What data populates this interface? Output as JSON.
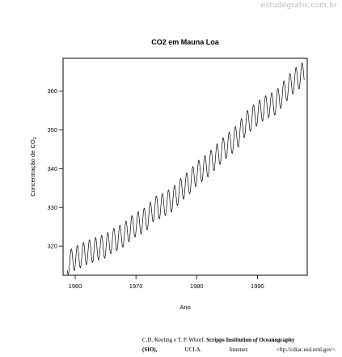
{
  "watermark": "estudegratis.com.br",
  "chart_data": {
    "type": "line",
    "title": "CO2 em Mauna Loa",
    "xlabel": "Ano",
    "ylabel_prefix": "Concentração de CO",
    "ylabel_subscript": "2",
    "xlim": [
      1958,
      1998.2
    ],
    "ylim": [
      312.5,
      368.5
    ],
    "xticks": [
      "1960",
      "1970",
      "1980",
      "1990"
    ],
    "yticks": [
      "320",
      "330",
      "340",
      "350",
      "360"
    ],
    "grid": false,
    "series": [
      {
        "x": [
          1959,
          1960,
          1961,
          1962,
          1963,
          1964,
          1965,
          1966,
          1967,
          1968,
          1969,
          1970,
          1971,
          1972,
          1973,
          1974,
          1975,
          1976,
          1977,
          1978,
          1979,
          1980,
          1981,
          1982,
          1983,
          1984,
          1985,
          1986,
          1987,
          1988,
          1989,
          1990,
          1991,
          1992,
          1993,
          1994,
          1995,
          1996,
          1997
        ],
        "values": [
          315.9,
          316.9,
          317.6,
          318.4,
          318.9,
          319.6,
          320.0,
          321.3,
          322.0,
          322.9,
          324.4,
          325.6,
          326.3,
          327.5,
          329.7,
          330.2,
          331.1,
          332.0,
          333.8,
          335.4,
          336.8,
          338.7,
          339.9,
          341.1,
          342.8,
          344.4,
          345.9,
          347.2,
          348.9,
          351.5,
          352.9,
          354.2,
          355.5,
          356.3,
          357.0,
          358.9,
          360.9,
          362.6,
          363.8
        ],
        "seasonal_amplitude": 6.2
      }
    ]
  },
  "credit": {
    "line1_authors": "C.D. Keeling e T. P. Whorf.",
    "line1_inst_a": "Scripps Institution",
    "line1_of": "of",
    "line1_inst_b": "Oceanography",
    "line2_a": "(SIO),",
    "line2_b": "UCLA.",
    "line2_c": "Internet:",
    "line2_d": "<ftp://cdiac.esd.ornl.gov>."
  }
}
